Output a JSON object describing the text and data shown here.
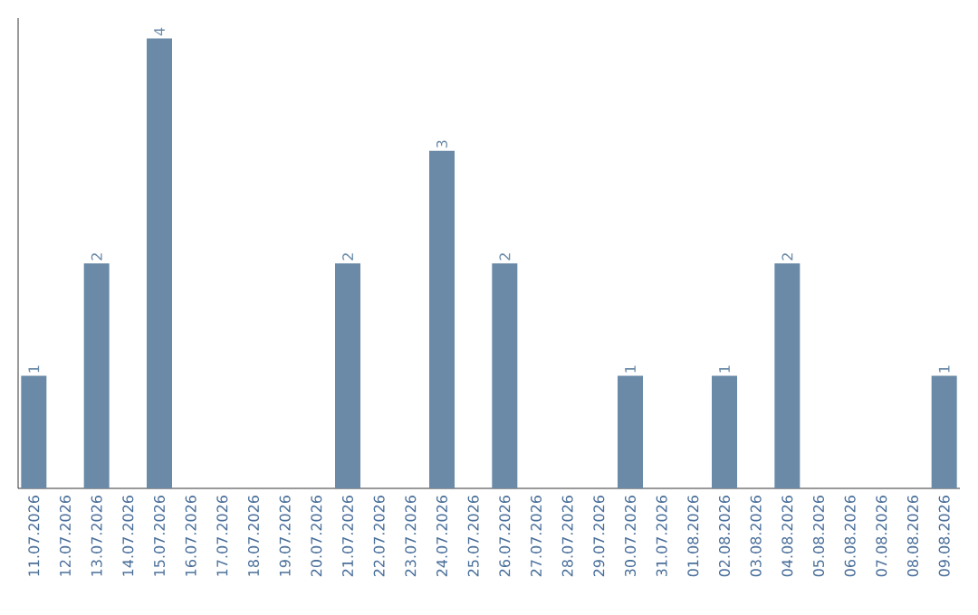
{
  "chart_data": {
    "type": "bar",
    "categories": [
      "11.07.2026",
      "12.07.2026",
      "13.07.2026",
      "14.07.2026",
      "15.07.2026",
      "16.07.2026",
      "17.07.2026",
      "18.07.2026",
      "19.07.2026",
      "20.07.2026",
      "21.07.2026",
      "22.07.2026",
      "23.07.2026",
      "24.07.2026",
      "25.07.2026",
      "26.07.2026",
      "27.07.2026",
      "28.07.2026",
      "29.07.2026",
      "30.07.2026",
      "31.07.2026",
      "01.08.2026",
      "02.08.2026",
      "03.08.2026",
      "04.08.2026",
      "05.08.2026",
      "06.08.2026",
      "07.08.2026",
      "08.08.2026",
      "09.08.2026"
    ],
    "values": [
      1,
      0,
      2,
      0,
      4,
      0,
      0,
      0,
      0,
      0,
      2,
      0,
      0,
      3,
      0,
      2,
      0,
      0,
      0,
      1,
      0,
      0,
      1,
      0,
      2,
      0,
      0,
      0,
      0,
      1
    ],
    "value_labels": [
      "1",
      null,
      "2",
      null,
      "4",
      null,
      null,
      null,
      null,
      null,
      "2",
      null,
      null,
      "3",
      null,
      "2",
      null,
      null,
      null,
      "1",
      null,
      null,
      "1",
      null,
      "2",
      null,
      null,
      null,
      null,
      "1"
    ],
    "color": "#6a8aa8",
    "tick_labels": "x"
  }
}
